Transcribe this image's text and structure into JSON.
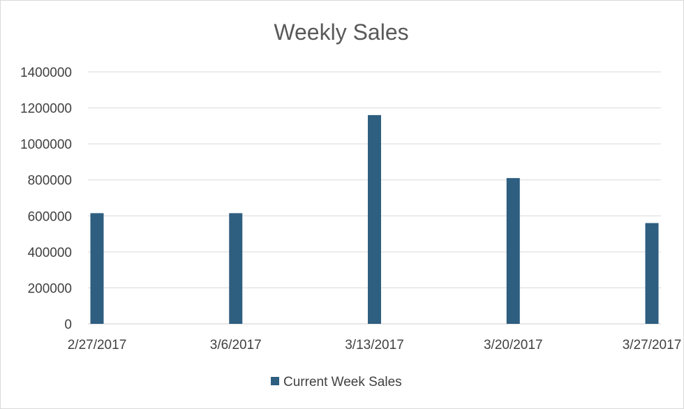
{
  "chart_data": {
    "type": "bar",
    "title": "Weekly Sales",
    "xlabel": "",
    "ylabel": "",
    "categories": [
      "2/27/2017",
      "3/6/2017",
      "3/13/2017",
      "3/20/2017",
      "3/27/2017"
    ],
    "series": [
      {
        "name": "Current Week Sales",
        "values": [
          615000,
          615000,
          1160000,
          810000,
          560000
        ],
        "color": "#2e5e80"
      }
    ],
    "ylim": [
      0,
      1400000
    ],
    "yticks": [
      "0",
      "200000",
      "400000",
      "600000",
      "800000",
      "1000000",
      "1200000",
      "1400000"
    ],
    "grid": true,
    "legend_position": "bottom"
  }
}
